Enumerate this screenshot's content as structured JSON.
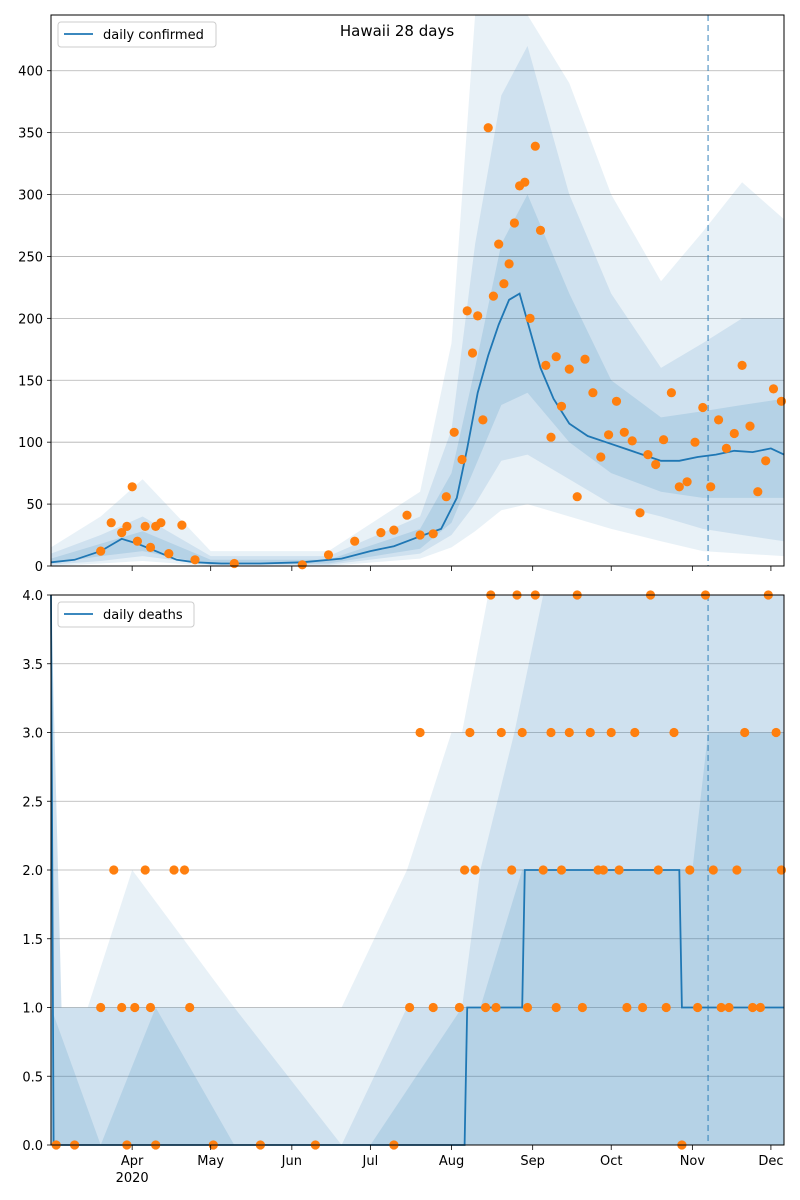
{
  "chart_data": [
    {
      "type": "line",
      "title": "Hawaii 28 days",
      "legend": {
        "label": "daily confirmed",
        "placement": "top-left"
      },
      "xlim": [
        "2020-03-01",
        "2020-12-06"
      ],
      "ylim": [
        0,
        445
      ],
      "y_ticks": [
        0,
        50,
        100,
        150,
        200,
        250,
        300,
        350,
        400
      ],
      "grid": "horizontal",
      "forecast_start": "2020-11-07",
      "colors": {
        "line": "#1f77b4",
        "points": "#ff7f0e",
        "band": "#1f77b4",
        "marker_line": "#1f77b4"
      },
      "series": [
        {
          "name": "daily confirmed",
          "kind": "line",
          "x": [
            "2020-03-01",
            "2020-03-10",
            "2020-03-20",
            "2020-03-28",
            "2020-04-03",
            "2020-04-10",
            "2020-04-18",
            "2020-04-25",
            "2020-05-05",
            "2020-05-20",
            "2020-06-05",
            "2020-06-20",
            "2020-07-01",
            "2020-07-10",
            "2020-07-20",
            "2020-07-28",
            "2020-08-03",
            "2020-08-07",
            "2020-08-11",
            "2020-08-15",
            "2020-08-19",
            "2020-08-23",
            "2020-08-27",
            "2020-08-31",
            "2020-09-04",
            "2020-09-09",
            "2020-09-15",
            "2020-09-22",
            "2020-09-29",
            "2020-10-06",
            "2020-10-13",
            "2020-10-20",
            "2020-10-27",
            "2020-11-03",
            "2020-11-10",
            "2020-11-17",
            "2020-11-24",
            "2020-12-01",
            "2020-12-06"
          ],
          "y": [
            3,
            5,
            12,
            22,
            18,
            12,
            5,
            3,
            2,
            2,
            3,
            6,
            12,
            16,
            24,
            30,
            55,
            95,
            140,
            170,
            195,
            215,
            220,
            190,
            160,
            135,
            115,
            105,
            100,
            95,
            90,
            85,
            85,
            88,
            90,
            93,
            92,
            95,
            90
          ]
        },
        {
          "name": "observed",
          "kind": "scatter",
          "x": [
            "2020-03-20",
            "2020-03-24",
            "2020-03-28",
            "2020-03-30",
            "2020-04-01",
            "2020-04-03",
            "2020-04-06",
            "2020-04-08",
            "2020-04-10",
            "2020-04-12",
            "2020-04-15",
            "2020-04-20",
            "2020-04-25",
            "2020-05-10",
            "2020-06-05",
            "2020-06-15",
            "2020-06-25",
            "2020-07-05",
            "2020-07-10",
            "2020-07-15",
            "2020-07-20",
            "2020-07-25",
            "2020-07-30",
            "2020-08-02",
            "2020-08-05",
            "2020-08-07",
            "2020-08-09",
            "2020-08-11",
            "2020-08-13",
            "2020-08-15",
            "2020-08-17",
            "2020-08-19",
            "2020-08-21",
            "2020-08-23",
            "2020-08-25",
            "2020-08-27",
            "2020-08-29",
            "2020-08-31",
            "2020-09-02",
            "2020-09-04",
            "2020-09-06",
            "2020-09-08",
            "2020-09-10",
            "2020-09-12",
            "2020-09-15",
            "2020-09-18",
            "2020-09-21",
            "2020-09-24",
            "2020-09-27",
            "2020-09-30",
            "2020-10-03",
            "2020-10-06",
            "2020-10-09",
            "2020-10-12",
            "2020-10-15",
            "2020-10-18",
            "2020-10-21",
            "2020-10-24",
            "2020-10-27",
            "2020-10-30",
            "2020-11-02",
            "2020-11-05",
            "2020-11-08",
            "2020-11-11",
            "2020-11-14",
            "2020-11-17",
            "2020-11-20",
            "2020-11-23",
            "2020-11-26",
            "2020-11-29",
            "2020-12-02",
            "2020-12-05"
          ],
          "y": [
            12,
            35,
            27,
            32,
            64,
            20,
            32,
            15,
            32,
            35,
            10,
            33,
            5,
            2,
            1,
            9,
            20,
            27,
            29,
            41,
            25,
            26,
            56,
            108,
            86,
            206,
            172,
            202,
            118,
            354,
            218,
            260,
            228,
            244,
            277,
            307,
            310,
            200,
            339,
            271,
            162,
            104,
            169,
            129,
            159,
            56,
            167,
            140,
            88,
            106,
            133,
            108,
            101,
            43,
            90,
            82,
            102,
            140,
            64,
            68,
            100,
            128,
            64,
            118,
            95,
            107,
            162,
            113,
            60,
            85,
            143,
            133
          ]
        }
      ],
      "bands": [
        {
          "name": "outer",
          "opacity": 0.1,
          "x": [
            "2020-03-01",
            "2020-03-20",
            "2020-04-05",
            "2020-05-01",
            "2020-06-15",
            "2020-07-20",
            "2020-08-01",
            "2020-08-10",
            "2020-08-20",
            "2020-08-30",
            "2020-09-15",
            "2020-10-01",
            "2020-10-20",
            "2020-11-05",
            "2020-11-20",
            "2020-12-06"
          ],
          "low": [
            0,
            2,
            4,
            0,
            0,
            6,
            15,
            28,
            45,
            50,
            40,
            30,
            20,
            12,
            10,
            8
          ],
          "high": [
            15,
            40,
            70,
            12,
            12,
            60,
            180,
            445,
            445,
            445,
            390,
            300,
            230,
            270,
            310,
            280
          ]
        },
        {
          "name": "middle",
          "opacity": 0.12,
          "x": [
            "2020-03-01",
            "2020-03-20",
            "2020-04-05",
            "2020-05-01",
            "2020-06-15",
            "2020-07-20",
            "2020-08-01",
            "2020-08-10",
            "2020-08-20",
            "2020-08-30",
            "2020-09-15",
            "2020-10-01",
            "2020-10-20",
            "2020-11-05",
            "2020-11-20",
            "2020-12-06"
          ],
          "low": [
            1,
            4,
            8,
            1,
            1,
            10,
            25,
            50,
            85,
            90,
            70,
            50,
            40,
            30,
            25,
            20
          ],
          "high": [
            10,
            25,
            40,
            8,
            8,
            40,
            110,
            260,
            380,
            420,
            300,
            220,
            160,
            180,
            200,
            200
          ]
        },
        {
          "name": "inner",
          "opacity": 0.14,
          "x": [
            "2020-03-01",
            "2020-03-20",
            "2020-04-05",
            "2020-05-01",
            "2020-06-15",
            "2020-07-20",
            "2020-08-01",
            "2020-08-10",
            "2020-08-20",
            "2020-08-30",
            "2020-09-15",
            "2020-10-01",
            "2020-10-20",
            "2020-11-05",
            "2020-11-20",
            "2020-12-06"
          ],
          "low": [
            2,
            8,
            12,
            1,
            2,
            14,
            35,
            80,
            130,
            140,
            100,
            75,
            60,
            55,
            55,
            55
          ],
          "high": [
            6,
            18,
            28,
            5,
            5,
            30,
            75,
            160,
            260,
            300,
            220,
            150,
            120,
            125,
            130,
            135
          ]
        }
      ]
    },
    {
      "type": "line",
      "title": "",
      "legend": {
        "label": "daily deaths",
        "placement": "top-left"
      },
      "xlim": [
        "2020-03-01",
        "2020-12-06"
      ],
      "ylim": [
        0,
        4
      ],
      "y_ticks": [
        "0.0",
        "0.5",
        "1.0",
        "1.5",
        "2.0",
        "2.5",
        "3.0",
        "3.5",
        "4.0"
      ],
      "grid": "horizontal",
      "forecast_start": "2020-11-07",
      "x_ticks": [
        {
          "date": "2020-04-01",
          "label": "Apr",
          "sub": "2020"
        },
        {
          "date": "2020-05-01",
          "label": "May",
          "sub": ""
        },
        {
          "date": "2020-06-01",
          "label": "Jun",
          "sub": ""
        },
        {
          "date": "2020-07-01",
          "label": "Jul",
          "sub": ""
        },
        {
          "date": "2020-08-01",
          "label": "Aug",
          "sub": ""
        },
        {
          "date": "2020-09-01",
          "label": "Sep",
          "sub": ""
        },
        {
          "date": "2020-10-01",
          "label": "Oct",
          "sub": ""
        },
        {
          "date": "2020-11-01",
          "label": "Nov",
          "sub": ""
        },
        {
          "date": "2020-12-01",
          "label": "Dec",
          "sub": ""
        }
      ],
      "series": [
        {
          "name": "daily deaths",
          "kind": "line",
          "x": [
            "2020-03-01",
            "2020-03-02",
            "2020-08-06",
            "2020-08-07",
            "2020-08-08",
            "2020-08-28",
            "2020-08-29",
            "2020-10-27",
            "2020-10-28",
            "2020-11-01",
            "2020-11-02",
            "2020-12-06"
          ],
          "y": [
            4,
            0,
            0,
            1,
            1,
            1,
            2,
            2,
            1,
            1,
            1,
            1
          ]
        },
        {
          "name": "observed",
          "kind": "scatter",
          "x": [
            "2020-03-03",
            "2020-03-10",
            "2020-03-20",
            "2020-03-25",
            "2020-03-28",
            "2020-03-30",
            "2020-04-02",
            "2020-04-06",
            "2020-04-08",
            "2020-04-10",
            "2020-04-17",
            "2020-04-21",
            "2020-04-23",
            "2020-05-02",
            "2020-05-20",
            "2020-06-10",
            "2020-07-10",
            "2020-07-16",
            "2020-07-20",
            "2020-07-25",
            "2020-08-04",
            "2020-08-06",
            "2020-08-08",
            "2020-08-10",
            "2020-08-14",
            "2020-08-16",
            "2020-08-18",
            "2020-08-20",
            "2020-08-24",
            "2020-08-26",
            "2020-08-28",
            "2020-08-30",
            "2020-09-02",
            "2020-09-05",
            "2020-09-08",
            "2020-09-10",
            "2020-09-12",
            "2020-09-15",
            "2020-09-18",
            "2020-09-20",
            "2020-09-23",
            "2020-09-26",
            "2020-09-28",
            "2020-10-01",
            "2020-10-04",
            "2020-10-07",
            "2020-10-10",
            "2020-10-13",
            "2020-10-16",
            "2020-10-19",
            "2020-10-22",
            "2020-10-25",
            "2020-10-28",
            "2020-10-31",
            "2020-11-03",
            "2020-11-06",
            "2020-11-09",
            "2020-11-12",
            "2020-11-15",
            "2020-11-18",
            "2020-11-21",
            "2020-11-24",
            "2020-11-27",
            "2020-11-30",
            "2020-12-03",
            "2020-12-05"
          ],
          "y": [
            0,
            0,
            1,
            2,
            1,
            0,
            1,
            2,
            1,
            0,
            2,
            2,
            1,
            0,
            0,
            0,
            0,
            1,
            3,
            1,
            1,
            2,
            3,
            2,
            1,
            4,
            1,
            3,
            2,
            4,
            3,
            1,
            4,
            2,
            3,
            1,
            2,
            3,
            4,
            1,
            3,
            2,
            2,
            3,
            2,
            1,
            3,
            1,
            4,
            2,
            1,
            3,
            0,
            2,
            1,
            4,
            2,
            1,
            1,
            2,
            3,
            1,
            1,
            4,
            3,
            2
          ]
        }
      ],
      "bands": [
        {
          "name": "outer",
          "opacity": 0.1,
          "x": [
            "2020-03-01",
            "2020-03-05",
            "2020-03-15",
            "2020-04-01",
            "2020-05-10",
            "2020-06-20",
            "2020-07-15",
            "2020-08-01",
            "2020-08-05",
            "2020-08-15",
            "2020-09-01",
            "2020-12-06"
          ],
          "low": [
            0,
            0,
            0,
            0,
            0,
            0,
            0,
            0,
            0,
            0,
            0,
            0
          ],
          "high": [
            4,
            1,
            1,
            2,
            1,
            1,
            2,
            3,
            3,
            4,
            4,
            4
          ]
        },
        {
          "name": "middle",
          "opacity": 0.12,
          "x": [
            "2020-03-01",
            "2020-03-05",
            "2020-03-20",
            "2020-04-10",
            "2020-05-10",
            "2020-06-20",
            "2020-07-15",
            "2020-08-05",
            "2020-08-12",
            "2020-08-25",
            "2020-09-05",
            "2020-12-06"
          ],
          "low": [
            0,
            0,
            0,
            0,
            0,
            0,
            0,
            0,
            0,
            0,
            0,
            0
          ],
          "high": [
            4,
            1,
            1,
            1,
            1,
            0,
            1,
            1,
            2,
            3,
            4,
            4
          ]
        },
        {
          "name": "inner",
          "opacity": 0.14,
          "x": [
            "2020-03-01",
            "2020-03-20",
            "2020-04-10",
            "2020-05-10",
            "2020-07-01",
            "2020-08-05",
            "2020-08-12",
            "2020-08-28",
            "2020-09-05",
            "2020-11-01",
            "2020-11-07",
            "2020-12-06"
          ],
          "low": [
            0,
            0,
            0,
            0,
            0,
            0,
            0,
            0,
            0,
            0,
            0,
            0
          ],
          "high": [
            1,
            0,
            1,
            0,
            0,
            1,
            1,
            2,
            2,
            2,
            3,
            3
          ]
        }
      ]
    }
  ]
}
